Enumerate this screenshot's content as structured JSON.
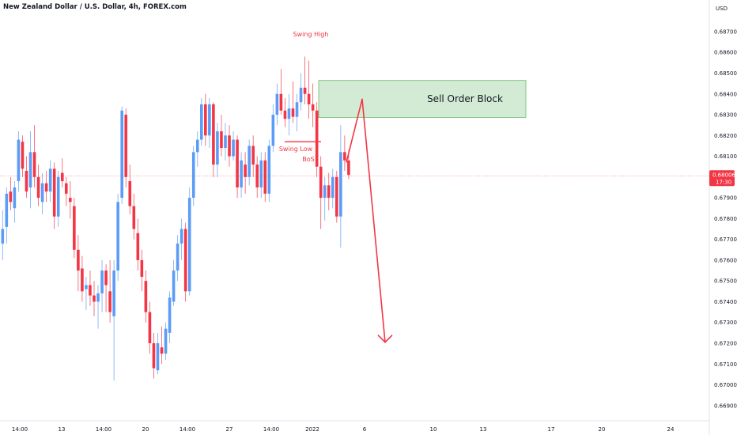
{
  "chart_data": {
    "type": "candlestick",
    "title": "New Zealand Dollar / U.S. Dollar, 4h, FOREX.com",
    "currency_label": "USD",
    "y_ticks": [
      0.687,
      0.686,
      0.685,
      0.684,
      0.683,
      0.682,
      0.681,
      0.679,
      0.678,
      0.677,
      0.676,
      0.675,
      0.674,
      0.673,
      0.672,
      0.671,
      0.67,
      0.669
    ],
    "ylim": [
      0.66865,
      0.68795
    ],
    "x_tick_labels": [
      "14:00",
      "13",
      "14:00",
      "20",
      "14:00",
      "27",
      "14:00",
      "2022",
      "6",
      "10",
      "13",
      "17",
      "20",
      "24"
    ],
    "grid": false,
    "last_price": {
      "value": 0.68006,
      "label": "0.68006",
      "countdown": "17:30",
      "color": "#f23645"
    },
    "colors": {
      "up": "#5b9cf6",
      "down": "#f23645",
      "order_block_fill": "#c8e6c9",
      "order_block_border": "#66bb6a"
    },
    "annotations": {
      "swing_high": "Swing High",
      "swing_low": "Swing Low",
      "bos": "BoS",
      "order_block": "Sell Order Block",
      "order_block_range": [
        0.68287,
        0.68465
      ],
      "bos_level": 0.6817,
      "projection": [
        0.68375,
        0.67205
      ]
    },
    "ohlc": [
      [
        0.6768,
        0.6784,
        0.676,
        0.6775
      ],
      [
        0.6776,
        0.6795,
        0.6768,
        0.6792
      ],
      [
        0.6793,
        0.68,
        0.6784,
        0.6788
      ],
      [
        0.6785,
        0.6798,
        0.6778,
        0.6795
      ],
      [
        0.6798,
        0.6822,
        0.6793,
        0.6818
      ],
      [
        0.6817,
        0.682,
        0.68,
        0.6804
      ],
      [
        0.6803,
        0.681,
        0.679,
        0.6793
      ],
      [
        0.6795,
        0.6822,
        0.6785,
        0.6812
      ],
      [
        0.6812,
        0.6825,
        0.6795,
        0.68
      ],
      [
        0.68,
        0.6806,
        0.6786,
        0.679
      ],
      [
        0.6788,
        0.6802,
        0.6782,
        0.6797
      ],
      [
        0.6797,
        0.6803,
        0.6788,
        0.6793
      ],
      [
        0.6793,
        0.6808,
        0.6788,
        0.6804
      ],
      [
        0.6804,
        0.6807,
        0.6775,
        0.6781
      ],
      [
        0.6781,
        0.6803,
        0.6776,
        0.68
      ],
      [
        0.6802,
        0.6809,
        0.6795,
        0.6798
      ],
      [
        0.6797,
        0.68,
        0.6786,
        0.6792
      ],
      [
        0.679,
        0.6798,
        0.678,
        0.6788
      ],
      [
        0.6786,
        0.679,
        0.6761,
        0.6765
      ],
      [
        0.6765,
        0.6772,
        0.6745,
        0.6755
      ],
      [
        0.6756,
        0.6762,
        0.674,
        0.6745
      ],
      [
        0.6746,
        0.6752,
        0.6736,
        0.6748
      ],
      [
        0.6748,
        0.6755,
        0.6738,
        0.6743
      ],
      [
        0.6743,
        0.675,
        0.6733,
        0.674
      ],
      [
        0.674,
        0.6748,
        0.6727,
        0.6744
      ],
      [
        0.6744,
        0.676,
        0.6735,
        0.6755
      ],
      [
        0.6755,
        0.6758,
        0.6735,
        0.6748
      ],
      [
        0.6745,
        0.676,
        0.673,
        0.6735
      ],
      [
        0.6733,
        0.676,
        0.6702,
        0.6755
      ],
      [
        0.6755,
        0.6792,
        0.675,
        0.6788
      ],
      [
        0.679,
        0.6834,
        0.6787,
        0.6832
      ],
      [
        0.683,
        0.6833,
        0.6795,
        0.68
      ],
      [
        0.6798,
        0.6806,
        0.6782,
        0.6786
      ],
      [
        0.6786,
        0.6792,
        0.677,
        0.6775
      ],
      [
        0.6773,
        0.678,
        0.6755,
        0.676
      ],
      [
        0.676,
        0.6765,
        0.6745,
        0.6752
      ],
      [
        0.675,
        0.6755,
        0.673,
        0.6735
      ],
      [
        0.6735,
        0.674,
        0.6715,
        0.672
      ],
      [
        0.672,
        0.6725,
        0.6703,
        0.6708
      ],
      [
        0.6707,
        0.6725,
        0.6705,
        0.672
      ],
      [
        0.6718,
        0.6728,
        0.671,
        0.6715
      ],
      [
        0.6715,
        0.673,
        0.6712,
        0.6727
      ],
      [
        0.6725,
        0.6745,
        0.672,
        0.6742
      ],
      [
        0.674,
        0.676,
        0.6738,
        0.6755
      ],
      [
        0.6755,
        0.6772,
        0.675,
        0.6768
      ],
      [
        0.6768,
        0.678,
        0.676,
        0.6775
      ],
      [
        0.6775,
        0.6778,
        0.674,
        0.6745
      ],
      [
        0.6745,
        0.6795,
        0.6743,
        0.679
      ],
      [
        0.679,
        0.6815,
        0.6786,
        0.6812
      ],
      [
        0.6812,
        0.6822,
        0.6805,
        0.6818
      ],
      [
        0.6818,
        0.6838,
        0.6815,
        0.6835
      ],
      [
        0.6835,
        0.684,
        0.6815,
        0.682
      ],
      [
        0.682,
        0.6838,
        0.6814,
        0.6835
      ],
      [
        0.6835,
        0.6836,
        0.68,
        0.6806
      ],
      [
        0.6806,
        0.6826,
        0.68,
        0.6822
      ],
      [
        0.6822,
        0.683,
        0.681,
        0.6814
      ],
      [
        0.6814,
        0.6826,
        0.6808,
        0.682
      ],
      [
        0.682,
        0.6825,
        0.6805,
        0.681
      ],
      [
        0.681,
        0.6822,
        0.6808,
        0.6818
      ],
      [
        0.6818,
        0.682,
        0.679,
        0.6795
      ],
      [
        0.6795,
        0.6812,
        0.679,
        0.6808
      ],
      [
        0.6806,
        0.6812,
        0.6792,
        0.68
      ],
      [
        0.68,
        0.6818,
        0.6796,
        0.6815
      ],
      [
        0.6815,
        0.682,
        0.68,
        0.6806
      ],
      [
        0.6806,
        0.681,
        0.679,
        0.6795
      ],
      [
        0.6795,
        0.6812,
        0.679,
        0.6808
      ],
      [
        0.6808,
        0.6812,
        0.6788,
        0.6792
      ],
      [
        0.6792,
        0.6818,
        0.6788,
        0.6815
      ],
      [
        0.6815,
        0.6835,
        0.6812,
        0.683
      ],
      [
        0.683,
        0.6845,
        0.6825,
        0.684
      ],
      [
        0.684,
        0.6852,
        0.683,
        0.6832
      ],
      [
        0.6832,
        0.6838,
        0.6824,
        0.6828
      ],
      [
        0.6828,
        0.684,
        0.682,
        0.6833
      ],
      [
        0.6833,
        0.6846,
        0.6826,
        0.6829
      ],
      [
        0.6829,
        0.684,
        0.6822,
        0.6836
      ],
      [
        0.6836,
        0.685,
        0.6832,
        0.6843
      ],
      [
        0.6843,
        0.6858,
        0.6835,
        0.684
      ],
      [
        0.684,
        0.6856,
        0.6828,
        0.6835
      ],
      [
        0.6835,
        0.6845,
        0.6824,
        0.6832
      ],
      [
        0.6832,
        0.6836,
        0.68,
        0.6805
      ],
      [
        0.6805,
        0.681,
        0.6775,
        0.679
      ],
      [
        0.679,
        0.68,
        0.6779,
        0.6796
      ],
      [
        0.6796,
        0.6802,
        0.6784,
        0.679
      ],
      [
        0.679,
        0.6804,
        0.6785,
        0.68
      ],
      [
        0.68,
        0.6803,
        0.6778,
        0.6781
      ],
      [
        0.6781,
        0.6825,
        0.6766,
        0.6812
      ],
      [
        0.6812,
        0.682,
        0.6803,
        0.6808
      ],
      [
        0.6808,
        0.6813,
        0.6799,
        0.6801
      ]
    ]
  }
}
